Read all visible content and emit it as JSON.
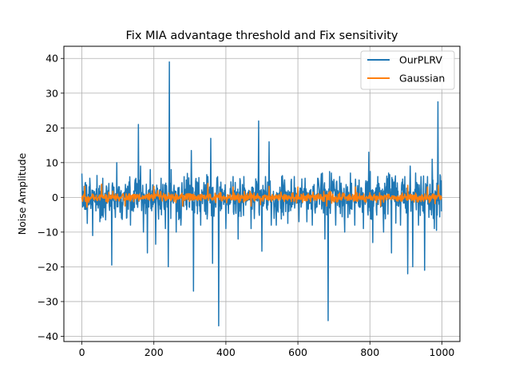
{
  "chart_data": {
    "type": "line",
    "title": "Fix MIA advantage threshold and Fix sensitivity",
    "xlabel": "",
    "ylabel": "Noise Amplitude",
    "xlim": [
      -50,
      1050
    ],
    "ylim": [
      -41.5,
      43.5
    ],
    "xticks": [
      0,
      200,
      400,
      600,
      800,
      1000
    ],
    "yticks": [
      -40,
      -30,
      -20,
      -10,
      0,
      10,
      20,
      30,
      40
    ],
    "grid": true,
    "legend": {
      "placement": "upper right",
      "entries": [
        "OurPLRV",
        "Gaussian"
      ]
    },
    "n_points": 1000,
    "series": [
      {
        "name": "OurPLRV",
        "color": "#1f77b4",
        "noise_amplitude": 4.5,
        "spikes": [
          {
            "x": 10,
            "y": 4.3
          },
          {
            "x": 15,
            "y": -7.5
          },
          {
            "x": 22,
            "y": 5.5
          },
          {
            "x": 30,
            "y": -11
          },
          {
            "x": 42,
            "y": 6.3
          },
          {
            "x": 50,
            "y": -7
          },
          {
            "x": 58,
            "y": 5.5
          },
          {
            "x": 66,
            "y": -6.5
          },
          {
            "x": 83,
            "y": -19.5
          },
          {
            "x": 97,
            "y": 10
          },
          {
            "x": 110,
            "y": -6
          },
          {
            "x": 135,
            "y": -8
          },
          {
            "x": 150,
            "y": 5.5
          },
          {
            "x": 157,
            "y": 21
          },
          {
            "x": 163,
            "y": 9
          },
          {
            "x": 171,
            "y": -10
          },
          {
            "x": 182,
            "y": -16
          },
          {
            "x": 190,
            "y": 8
          },
          {
            "x": 205,
            "y": -13.5
          },
          {
            "x": 220,
            "y": 5.5
          },
          {
            "x": 232,
            "y": -9
          },
          {
            "x": 240,
            "y": -20
          },
          {
            "x": 243,
            "y": 39
          },
          {
            "x": 248,
            "y": 8
          },
          {
            "x": 262,
            "y": -10
          },
          {
            "x": 275,
            "y": -8
          },
          {
            "x": 290,
            "y": 5
          },
          {
            "x": 304,
            "y": 13.5
          },
          {
            "x": 310,
            "y": -27
          },
          {
            "x": 330,
            "y": -8
          },
          {
            "x": 350,
            "y": 6
          },
          {
            "x": 358,
            "y": 17
          },
          {
            "x": 363,
            "y": -19
          },
          {
            "x": 380,
            "y": -37
          },
          {
            "x": 400,
            "y": -9
          },
          {
            "x": 420,
            "y": 6
          },
          {
            "x": 434,
            "y": -12
          },
          {
            "x": 450,
            "y": 6
          },
          {
            "x": 470,
            "y": -9
          },
          {
            "x": 491,
            "y": 22
          },
          {
            "x": 500,
            "y": -15.5
          },
          {
            "x": 510,
            "y": 6
          },
          {
            "x": 520,
            "y": 16
          },
          {
            "x": 526,
            "y": -8
          },
          {
            "x": 540,
            "y": -8
          },
          {
            "x": 555,
            "y": 6
          },
          {
            "x": 572,
            "y": -7.5
          },
          {
            "x": 590,
            "y": 6
          },
          {
            "x": 603,
            "y": -7
          },
          {
            "x": 620,
            "y": 5.5
          },
          {
            "x": 640,
            "y": -8
          },
          {
            "x": 655,
            "y": 5.5
          },
          {
            "x": 668,
            "y": 7
          },
          {
            "x": 675,
            "y": -12
          },
          {
            "x": 684,
            "y": -35.5
          },
          {
            "x": 693,
            "y": 7
          },
          {
            "x": 705,
            "y": -8
          },
          {
            "x": 716,
            "y": 6
          },
          {
            "x": 730,
            "y": -10
          },
          {
            "x": 746,
            "y": 7
          },
          {
            "x": 758,
            "y": -8
          },
          {
            "x": 770,
            "y": 5
          },
          {
            "x": 782,
            "y": -9
          },
          {
            "x": 797,
            "y": 13
          },
          {
            "x": 808,
            "y": -13
          },
          {
            "x": 822,
            "y": 6
          },
          {
            "x": 838,
            "y": -10
          },
          {
            "x": 852,
            "y": 7
          },
          {
            "x": 860,
            "y": -16
          },
          {
            "x": 870,
            "y": 5
          },
          {
            "x": 885,
            "y": -8
          },
          {
            "x": 897,
            "y": 6
          },
          {
            "x": 905,
            "y": -22
          },
          {
            "x": 912,
            "y": 9
          },
          {
            "x": 919,
            "y": -20
          },
          {
            "x": 927,
            "y": 7
          },
          {
            "x": 935,
            "y": -8
          },
          {
            "x": 942,
            "y": 6
          },
          {
            "x": 952,
            "y": -21
          },
          {
            "x": 960,
            "y": 6
          },
          {
            "x": 973,
            "y": 11
          },
          {
            "x": 979,
            "y": -9
          },
          {
            "x": 985,
            "y": -9.5
          },
          {
            "x": 989,
            "y": 27.5
          },
          {
            "x": 995,
            "y": 6.5
          }
        ]
      },
      {
        "name": "Gaussian",
        "color": "#ff7f0e",
        "noise_amplitude": 1.2,
        "spikes": [
          {
            "x": 8,
            "y": 3.2
          },
          {
            "x": 14,
            "y": -2.8
          },
          {
            "x": 55,
            "y": 3.8
          },
          {
            "x": 120,
            "y": -2.5
          },
          {
            "x": 200,
            "y": 3.2
          },
          {
            "x": 280,
            "y": -2.5
          },
          {
            "x": 350,
            "y": 4
          },
          {
            "x": 420,
            "y": 3
          },
          {
            "x": 470,
            "y": -2.5
          },
          {
            "x": 520,
            "y": 3.2
          },
          {
            "x": 600,
            "y": 3
          },
          {
            "x": 680,
            "y": -2.5
          },
          {
            "x": 760,
            "y": 3
          },
          {
            "x": 830,
            "y": -2.5
          },
          {
            "x": 905,
            "y": 3.5
          },
          {
            "x": 960,
            "y": 3
          },
          {
            "x": 990,
            "y": 3.5
          }
        ]
      }
    ]
  }
}
